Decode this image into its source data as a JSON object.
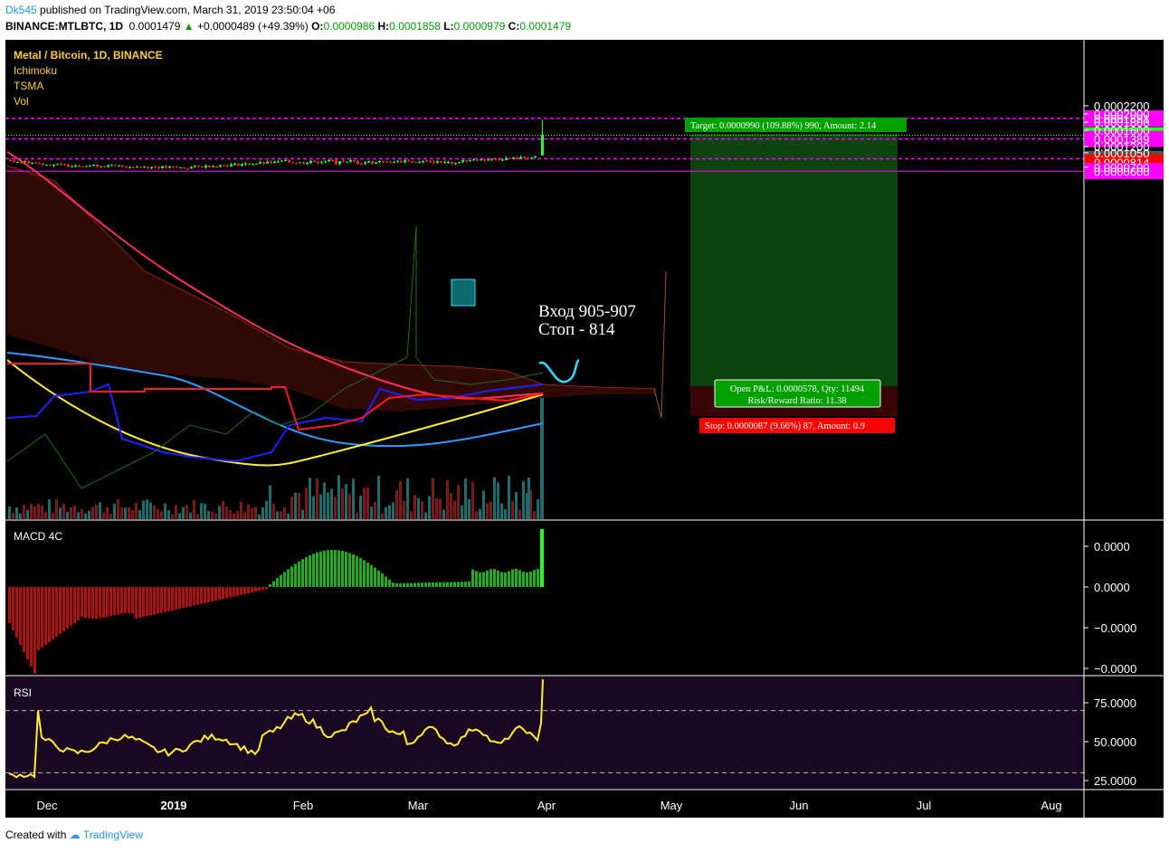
{
  "header": {
    "author": "Dk545",
    "published": "published on TradingView.com, March 31, 2019 23:50:04 +06",
    "symbol": "BINANCE:MTLBTC, 1D",
    "last": "0.0001479",
    "change": "+0.0000489 (+49.39%)",
    "o_label": "O:",
    "o": "0.0000986",
    "h_label": "H:",
    "h": "0.0001858",
    "l_label": "L:",
    "l": "0.0000979",
    "c_label": "C:",
    "c": "0.0001479"
  },
  "legend": {
    "title": "Metal / Bitcoin, 1D, BINANCE",
    "indicators": [
      "Ichimoku",
      "TSMA",
      "Vol"
    ]
  },
  "macd_label": "MACD 4C",
  "rsi_label": "RSI",
  "annotation": {
    "line1": "Вход 905-907",
    "line2": "Стоп - 814"
  },
  "position": {
    "target": "Target: 0.0000990 (109.88%) 990, Amount: 2.14",
    "open_pl": "Open P&L: 0.0000578, Qty: 11494",
    "rr": "Risk/Reward Ratio: 11.38",
    "stop": "Stop: 0.0000087 (9.66%) 87, Amount: 0.9"
  },
  "footer": {
    "prefix": "Created with",
    "brand": "TradingView"
  },
  "colors": {
    "background": "#000000",
    "up": "#26ff26",
    "down": "#ff2b2b",
    "magenta": "#ff00ff",
    "green_label": "#00c800",
    "gray_label": "#555555",
    "red_label": "#ff0000",
    "cyan": "#33ddff",
    "rsi": "#ffee33"
  },
  "chart_data": [
    {
      "type": "candlestick",
      "title": "Metal / Bitcoin, 1D, BINANCE",
      "x_ticks": [
        "Dec",
        "2019",
        "Feb",
        "Mar",
        "Apr",
        "May",
        "Jun",
        "Jul",
        "Aug"
      ],
      "y_ticks": [
        "0.0002200",
        "0.0002000",
        "0.0001800",
        "0.0001600",
        "0.0001200",
        "0.0001050",
        "0.0000700"
      ],
      "price_labels": [
        {
          "value": "0.0001891",
          "kind": "magenta"
        },
        {
          "value": "0.0001479",
          "kind": "green"
        },
        {
          "value": "0.0001389",
          "kind": "magenta"
        },
        {
          "value": "0.0000901",
          "kind": "gray"
        },
        {
          "value": "0.0000814",
          "kind": "red"
        },
        {
          "value": "0.0000600",
          "kind": "magenta"
        }
      ],
      "horizontal_levels": [
        0.0001891,
        0.0001389,
        9.01e-05,
        6e-05
      ],
      "last_price": 0.0001479,
      "last_candle": {
        "open": 9.86e-05,
        "high": 0.0001858,
        "low": 9.79e-05,
        "close": 0.0001479
      }
    },
    {
      "type": "bar",
      "title": "MACD 4C",
      "y_ticks": [
        "0.0000",
        "0.0000",
        "−0.0000",
        "−0.0000"
      ]
    },
    {
      "type": "line",
      "title": "RSI",
      "y_ticks": [
        "75.0000",
        "50.0000",
        "25.0000"
      ],
      "bands": [
        70,
        30
      ],
      "last": 90
    }
  ]
}
